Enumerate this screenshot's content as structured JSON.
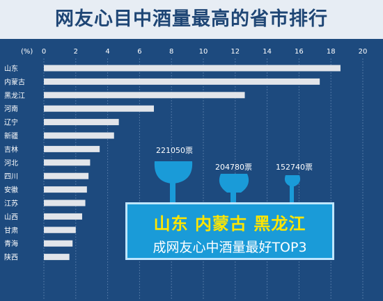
{
  "title": "网友心目中酒量最高的省市排行",
  "chart_data": {
    "type": "bar",
    "orientation": "horizontal",
    "unit_label": "(%)",
    "xlim": [
      0,
      20
    ],
    "x_ticks": [
      0,
      2,
      4,
      6,
      8,
      10,
      12,
      14,
      16,
      18,
      20
    ],
    "grid": true,
    "categories": [
      "山东",
      "内蒙古",
      "黑龙江",
      "河南",
      "辽宁",
      "新疆",
      "吉林",
      "河北",
      "四川",
      "安徽",
      "江苏",
      "山西",
      "甘肃",
      "青海",
      "陕西"
    ],
    "values": [
      18.6,
      17.3,
      12.6,
      6.9,
      4.7,
      4.4,
      3.5,
      2.9,
      2.8,
      2.7,
      2.6,
      2.4,
      2.0,
      1.8,
      1.6
    ]
  },
  "annotation": {
    "votes": [
      "221050票",
      "204780票",
      "152740票"
    ],
    "provinces": "山东  内蒙古  黑龙江",
    "subtitle": "成网友心中酒量最好TOP3",
    "colors": {
      "cup": "#1a9bd8",
      "highlight": "#ffe600",
      "bar": "#e2e5ea",
      "background": "#1d4a7e"
    }
  }
}
